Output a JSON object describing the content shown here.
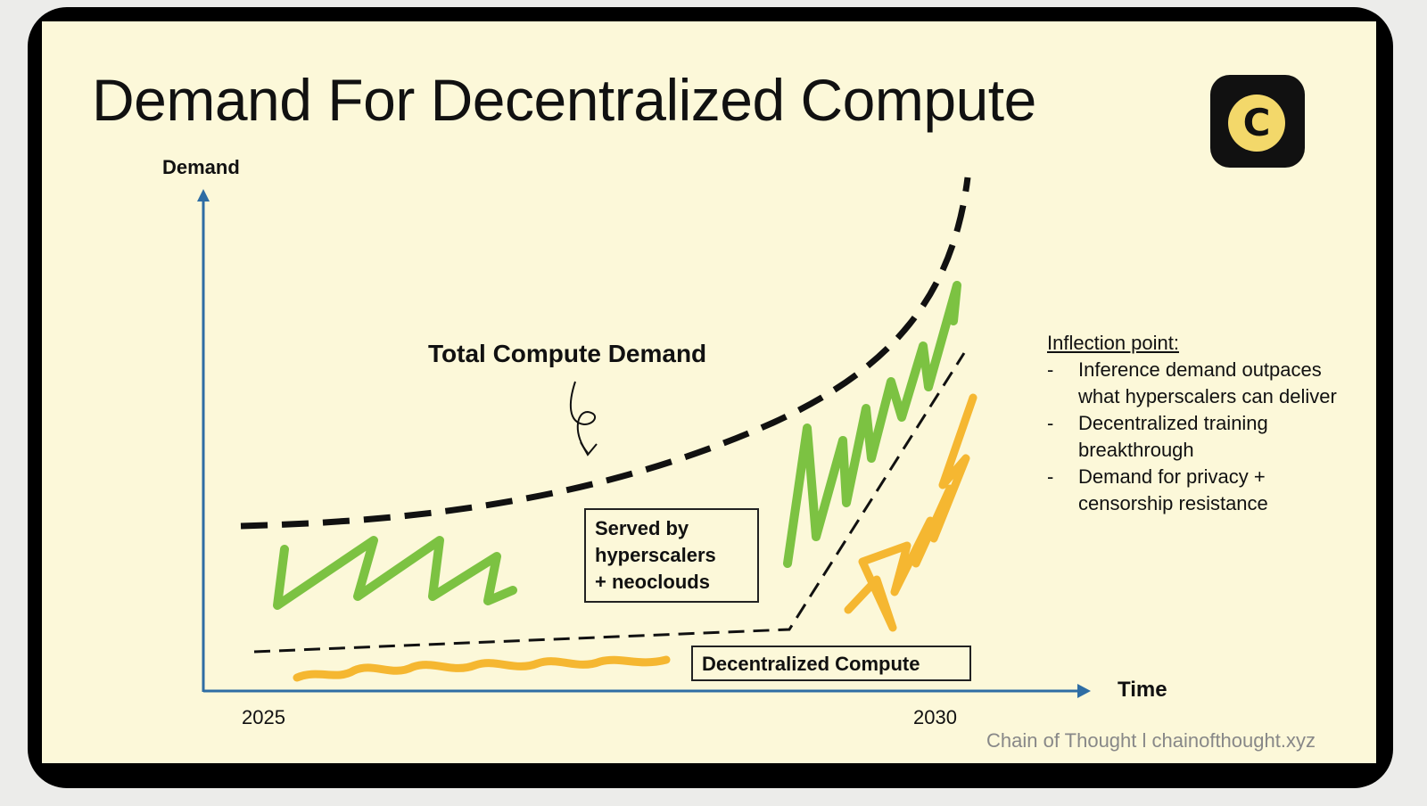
{
  "slide": {
    "title": "Demand For Decentralized Compute",
    "logo_letter": "C",
    "axis": {
      "y_label": "Demand",
      "x_label": "Time",
      "x_start": "2025",
      "x_end": "2030"
    },
    "curve_labels": {
      "total": "Total Compute Demand",
      "hyperscalers": [
        "Served by",
        "hyperscalers",
        "+ neoclouds"
      ],
      "decentralized": "Decentralized Compute"
    },
    "inflection": {
      "heading": "Inflection point:",
      "items": [
        "Inference demand outpaces what hyperscalers can deliver",
        "Decentralized training breakthrough",
        "Demand for privacy + censorship resistance"
      ]
    },
    "footer": "Chain of Thought l chainofthought.xyz",
    "colors": {
      "background": "#fcf8d9",
      "axis": "#2e6da4",
      "hyperscaler_scribble": "#7cc242",
      "decentralized_scribble": "#f5b731",
      "footer_text": "#888888"
    }
  }
}
